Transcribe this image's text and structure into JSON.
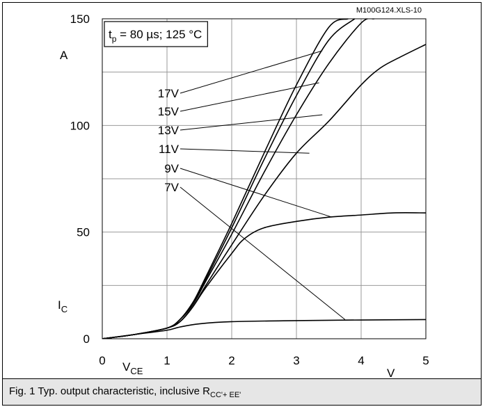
{
  "chart_data": {
    "type": "line",
    "file_ref": "M100G124.XLS-10",
    "condition": {
      "t": "t",
      "t_sub": "p",
      "rest": " = 80 µs; 125 °C"
    },
    "x_ticks": [
      "0",
      "1",
      "2",
      "3",
      "4",
      "5"
    ],
    "y_ticks": [
      "0",
      "50",
      "100",
      "150"
    ],
    "xlabel": {
      "main": "V",
      "sub": "CE"
    },
    "xunit": "V",
    "ylabel": {
      "main": "I",
      "sub": "C"
    },
    "yunit": "A",
    "xlim": [
      0,
      5
    ],
    "ylim": [
      0,
      150
    ],
    "grid": true,
    "series": [
      {
        "name": "17V",
        "x": [
          0,
          0.5,
          1.0,
          1.2,
          1.4,
          1.6,
          2.0,
          2.5,
          3.0,
          3.5,
          3.8
        ],
        "y": [
          0,
          2,
          5,
          9,
          17,
          29,
          54,
          87,
          119,
          146,
          150
        ]
      },
      {
        "name": "15V",
        "x": [
          0,
          0.5,
          1.0,
          1.2,
          1.4,
          1.6,
          2.0,
          2.5,
          3.0,
          3.5,
          3.9
        ],
        "y": [
          0,
          2,
          5,
          9,
          17,
          28,
          52,
          84,
          114,
          140,
          150
        ]
      },
      {
        "name": "13V",
        "x": [
          0,
          0.5,
          1.0,
          1.2,
          1.4,
          1.6,
          2.0,
          2.5,
          3.0,
          3.5,
          4.0,
          4.2
        ],
        "y": [
          0,
          2,
          5,
          9,
          16,
          27,
          49,
          78,
          105,
          129,
          148,
          150
        ]
      },
      {
        "name": "11V",
        "x": [
          0,
          0.5,
          1.0,
          1.2,
          1.4,
          1.6,
          2.0,
          2.5,
          3.0,
          3.5,
          4.0,
          4.3,
          4.6,
          5.0
        ],
        "y": [
          0,
          2,
          5,
          8,
          15,
          25,
          44,
          67,
          87,
          102,
          119,
          127,
          132,
          138
        ]
      },
      {
        "name": "9V",
        "x": [
          0,
          0.5,
          1.0,
          1.2,
          1.4,
          1.6,
          2.0,
          2.2,
          2.5,
          3.0,
          3.5,
          4.0,
          4.5,
          5.0
        ],
        "y": [
          0,
          2,
          5,
          8,
          15,
          24,
          40,
          47,
          52,
          55,
          57,
          58,
          59,
          59
        ]
      },
      {
        "name": "7V",
        "x": [
          0,
          0.5,
          1.0,
          1.2,
          1.5,
          2.0,
          3.0,
          4.0,
          5.0
        ],
        "y": [
          0,
          2,
          4,
          5.5,
          7,
          8,
          8.5,
          8.8,
          9
        ]
      }
    ]
  },
  "caption": {
    "text": "Fig. 1 Typ. output characteristic, inclusive R",
    "sub": "CC'+ EE'"
  }
}
